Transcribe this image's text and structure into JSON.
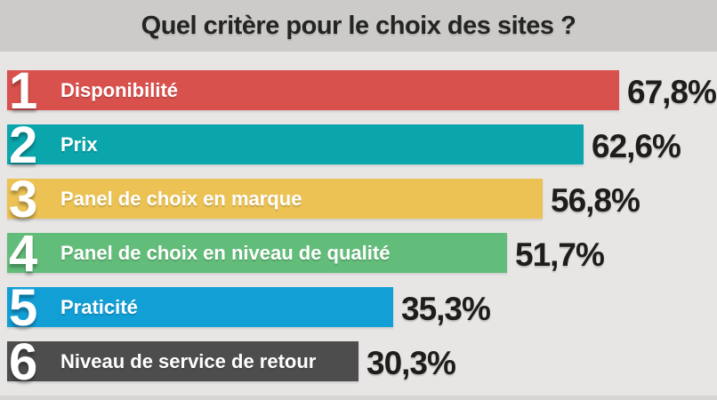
{
  "title": "Quel critère pour le choix des sites ?",
  "chart_data": {
    "type": "bar",
    "orientation": "horizontal",
    "title": "Quel critère pour le choix des sites ?",
    "xlabel": "",
    "ylabel": "",
    "xlim": [
      0,
      100
    ],
    "grid": false,
    "legend": false,
    "categories": [
      "Disponibilité",
      "Prix",
      "Panel de choix en marque",
      "Panel de choix en niveau de qualité",
      "Praticité",
      "Niveau de service de retour"
    ],
    "values": [
      67.8,
      62.6,
      56.8,
      51.7,
      35.3,
      30.3
    ],
    "value_labels": [
      "67,8%",
      "62,6%",
      "56,8%",
      "51,7%",
      "35,3%",
      "30,3%"
    ],
    "rank_labels": [
      "1",
      "2",
      "3",
      "4",
      "5",
      "6"
    ],
    "bar_colors": [
      "#d9514d",
      "#0aa6ac",
      "#ecc255",
      "#63bd7a",
      "#129fd6",
      "#4d4d4d"
    ]
  },
  "colors": {
    "background": "#e7e6e5",
    "title_band": "#cccbc9",
    "title_text": "#242422",
    "value_text": "#1e1d1b",
    "bar_label_text": "#ffffff"
  }
}
